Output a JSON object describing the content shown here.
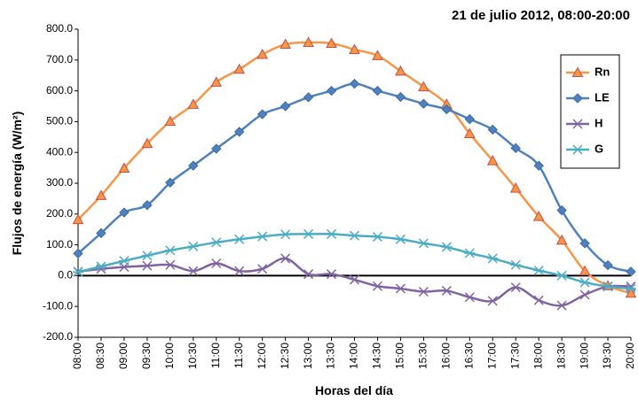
{
  "chart_data": {
    "type": "line",
    "title": "21 de julio 2012, 08:00-20:00",
    "x_label": "Horas del día",
    "y_label": "Flujos de energía (W/m²)",
    "categories": [
      "08:00",
      "08:30",
      "09:00",
      "09:30",
      "10:00",
      "10:30",
      "11:00",
      "11:30",
      "12:00",
      "12:30",
      "13:00",
      "13:30",
      "14:00",
      "14:30",
      "15:00",
      "15:30",
      "16:00",
      "16:30",
      "17:00",
      "17:30",
      "18:00",
      "18:30",
      "19:00",
      "19:30",
      "20:00"
    ],
    "series": [
      {
        "name": "Rn",
        "color": "#f79646",
        "marker": "triangle",
        "values": [
          182,
          260,
          349,
          429,
          501,
          556,
          628,
          670,
          718,
          751,
          757,
          754,
          734,
          714,
          664,
          613,
          557,
          461,
          373,
          284,
          192,
          115,
          15,
          -33,
          -57
        ]
      },
      {
        "name": "LE",
        "color": "#4f81bd",
        "marker": "diamond",
        "values": [
          72,
          138,
          205,
          229,
          302,
          357,
          412,
          467,
          524,
          550,
          579,
          600,
          623,
          600,
          580,
          558,
          540,
          508,
          474,
          414,
          357,
          212,
          105,
          34,
          13
        ]
      },
      {
        "name": "H",
        "color": "#8064a2",
        "marker": "x",
        "values": [
          13,
          22,
          28,
          32,
          35,
          15,
          40,
          15,
          22,
          56,
          5,
          5,
          -13,
          -34,
          -42,
          -52,
          -49,
          -70,
          -82,
          -38,
          -80,
          -97,
          -62,
          -35,
          -35
        ]
      },
      {
        "name": "G",
        "color": "#4bacc6",
        "marker": "star",
        "values": [
          12,
          30,
          48,
          65,
          82,
          95,
          108,
          118,
          127,
          134,
          135,
          135,
          130,
          126,
          118,
          105,
          93,
          73,
          56,
          35,
          17,
          0,
          -22,
          -35,
          -42
        ]
      }
    ],
    "ylim": [
      -200,
      800
    ],
    "yticks": [
      {
        "value": -200,
        "label": "-200.0"
      },
      {
        "value": -100,
        "label": "-100.0"
      },
      {
        "value": 0,
        "label": "0.0"
      },
      {
        "value": 100,
        "label": "100.0"
      },
      {
        "value": 200,
        "label": "200.0"
      },
      {
        "value": 300,
        "label": "300.0"
      },
      {
        "value": 400,
        "label": "400.0"
      },
      {
        "value": 500,
        "label": "500.0"
      },
      {
        "value": 600,
        "label": "600.0"
      },
      {
        "value": 700,
        "label": "700.0"
      },
      {
        "value": 800,
        "label": "800.0"
      }
    ],
    "legend": "upper right"
  }
}
